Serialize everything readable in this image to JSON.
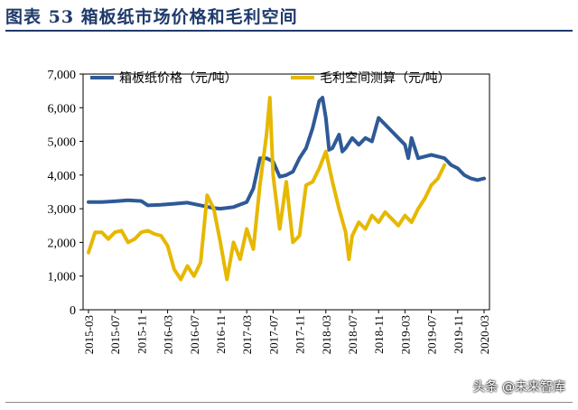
{
  "title": "图表  53   箱板纸市场价格和毛利空间",
  "watermark": "头条 @未来智库",
  "colors": {
    "price": "#2e5a97",
    "margin": "#e6b800",
    "title": "#1f3a6b"
  },
  "chart_data": {
    "type": "line",
    "title": "箱板纸市场价格和毛利空间",
    "ylim": [
      0,
      7000
    ],
    "yticks": [
      "0",
      "1,000",
      "2,000",
      "3,000",
      "4,000",
      "5,000",
      "6,000",
      "7,000"
    ],
    "xticks": [
      "2015-03",
      "2015-07",
      "2015-11",
      "2016-03",
      "2016-07",
      "2016-11",
      "2017-03",
      "2017-07",
      "2017-11",
      "2018-03",
      "2018-07",
      "2018-11",
      "2019-03",
      "2019-07",
      "2019-11",
      "2020-03"
    ],
    "xrange": [
      0,
      60
    ],
    "series": [
      {
        "name": "箱板纸价格（元/吨）",
        "color": "#2e5a97",
        "points": [
          [
            0,
            3200
          ],
          [
            2,
            3200
          ],
          [
            4,
            3220
          ],
          [
            6,
            3250
          ],
          [
            8,
            3230
          ],
          [
            9,
            3100
          ],
          [
            11,
            3120
          ],
          [
            13,
            3150
          ],
          [
            15,
            3180
          ],
          [
            17,
            3100
          ],
          [
            19,
            3020
          ],
          [
            20,
            3000
          ],
          [
            22,
            3050
          ],
          [
            24,
            3200
          ],
          [
            25,
            3600
          ],
          [
            26,
            4500
          ],
          [
            27,
            4500
          ],
          [
            28,
            4400
          ],
          [
            29,
            3950
          ],
          [
            30,
            4000
          ],
          [
            31,
            4100
          ],
          [
            32,
            4500
          ],
          [
            33,
            4800
          ],
          [
            34,
            5400
          ],
          [
            35,
            6200
          ],
          [
            35.5,
            6300
          ],
          [
            36,
            5700
          ],
          [
            36.5,
            4750
          ],
          [
            37,
            4800
          ],
          [
            38,
            5200
          ],
          [
            38.5,
            4700
          ],
          [
            39,
            4800
          ],
          [
            40,
            5100
          ],
          [
            41,
            4900
          ],
          [
            42,
            5100
          ],
          [
            43,
            5000
          ],
          [
            44,
            5700
          ],
          [
            45,
            5500
          ],
          [
            46,
            5300
          ],
          [
            47,
            5100
          ],
          [
            48,
            4900
          ],
          [
            48.5,
            4500
          ],
          [
            49,
            5100
          ],
          [
            50,
            4500
          ],
          [
            51,
            4550
          ],
          [
            52,
            4600
          ],
          [
            53,
            4550
          ],
          [
            54,
            4500
          ],
          [
            55,
            4300
          ],
          [
            56,
            4200
          ],
          [
            57,
            4000
          ],
          [
            58,
            3900
          ],
          [
            59,
            3850
          ],
          [
            60,
            3900
          ]
        ]
      },
      {
        "name": "毛利空间测算（元/吨）",
        "color": "#e6b800",
        "points": [
          [
            0,
            1700
          ],
          [
            1,
            2300
          ],
          [
            2,
            2300
          ],
          [
            3,
            2100
          ],
          [
            4,
            2300
          ],
          [
            5,
            2350
          ],
          [
            6,
            2000
          ],
          [
            7,
            2100
          ],
          [
            8,
            2300
          ],
          [
            9,
            2350
          ],
          [
            10,
            2250
          ],
          [
            11,
            2200
          ],
          [
            12,
            1900
          ],
          [
            13,
            1200
          ],
          [
            14,
            900
          ],
          [
            15,
            1300
          ],
          [
            16,
            1000
          ],
          [
            17,
            1400
          ],
          [
            18,
            3400
          ],
          [
            19,
            3000
          ],
          [
            20,
            2000
          ],
          [
            21,
            900
          ],
          [
            22,
            2000
          ],
          [
            23,
            1500
          ],
          [
            24,
            2400
          ],
          [
            25,
            1800
          ],
          [
            26,
            3700
          ],
          [
            27,
            5200
          ],
          [
            27.5,
            6300
          ],
          [
            28,
            4000
          ],
          [
            29,
            2400
          ],
          [
            30,
            3800
          ],
          [
            31,
            2000
          ],
          [
            32,
            2200
          ],
          [
            33,
            3700
          ],
          [
            34,
            3800
          ],
          [
            35,
            4200
          ],
          [
            36,
            4700
          ],
          [
            37,
            3800
          ],
          [
            38,
            3000
          ],
          [
            39,
            2300
          ],
          [
            39.5,
            1500
          ],
          [
            40,
            2200
          ],
          [
            41,
            2600
          ],
          [
            42,
            2400
          ],
          [
            43,
            2800
          ],
          [
            44,
            2600
          ],
          [
            45,
            2900
          ],
          [
            46,
            2700
          ],
          [
            47,
            2500
          ],
          [
            48,
            2800
          ],
          [
            49,
            2600
          ],
          [
            50,
            3000
          ],
          [
            51,
            3300
          ],
          [
            52,
            3700
          ],
          [
            53,
            3900
          ],
          [
            54,
            4300
          ]
        ]
      }
    ]
  }
}
